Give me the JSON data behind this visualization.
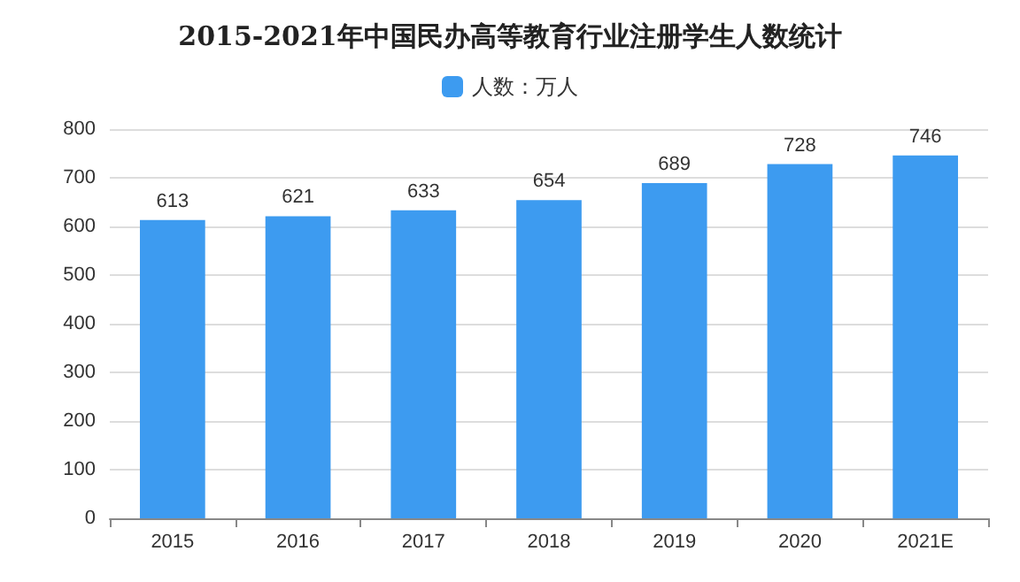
{
  "chart_data": {
    "type": "bar",
    "title": "2015-2021年中国民办高等教育行业注册学生人数统计",
    "categories": [
      "2015",
      "2016",
      "2017",
      "2018",
      "2019",
      "2020",
      "2021E"
    ],
    "series": [
      {
        "name": "人数：万人",
        "color": "#3d9bf0",
        "values": [
          613,
          621,
          633,
          654,
          689,
          728,
          746
        ]
      }
    ],
    "ylim": [
      0,
      800
    ],
    "yticks": [
      0,
      100,
      200,
      300,
      400,
      500,
      600,
      700,
      800
    ],
    "grid": "y",
    "legend": "top",
    "data_labels": true
  }
}
